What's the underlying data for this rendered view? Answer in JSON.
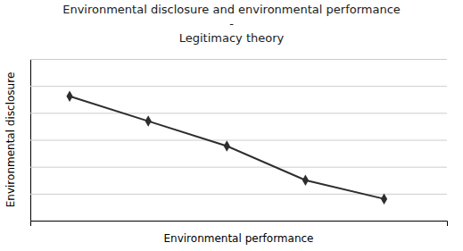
{
  "chart_data": {
    "type": "line",
    "title": [
      "Environmental disclosure and environmental performance",
      "-",
      "Legitimacy theory"
    ],
    "x_label": "Environmental performance",
    "y_label": "Environmental disclosure",
    "x": [
      1,
      2,
      3,
      4,
      5
    ],
    "values": [
      5,
      4.2,
      3.4,
      2.3,
      1.7
    ],
    "color": "#2d2d2d",
    "marker": "diamond",
    "xlim": [
      0.5,
      5.8
    ],
    "ylim": [
      1.0,
      6.2
    ],
    "xticks": [],
    "yticks": [
      1.0,
      1.8666666666666667,
      2.7333333333333334,
      3.6,
      4.466666666666667,
      5.333333333333334,
      6.2
    ],
    "grid": true,
    "tick_labels": false
  }
}
